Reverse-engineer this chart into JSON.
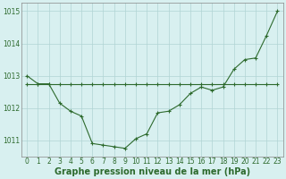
{
  "line1_x": [
    0,
    1,
    2,
    3,
    4,
    5,
    6,
    7,
    8,
    9,
    10,
    11,
    12,
    13,
    14,
    15,
    16,
    17,
    18,
    19,
    20,
    21,
    22,
    23
  ],
  "line1_y": [
    1012.75,
    1012.75,
    1012.75,
    1012.75,
    1012.75,
    1012.75,
    1012.75,
    1012.75,
    1012.75,
    1012.75,
    1012.75,
    1012.75,
    1012.75,
    1012.75,
    1012.75,
    1012.75,
    1012.75,
    1012.75,
    1012.75,
    1012.75,
    1012.75,
    1012.75,
    1012.75,
    1012.75
  ],
  "line2_x": [
    0,
    1,
    2,
    3,
    4,
    5,
    6,
    7,
    8,
    9,
    10,
    11,
    12,
    13,
    14,
    15,
    16,
    17,
    18,
    19,
    20,
    21,
    22,
    23
  ],
  "line2_y": [
    1013.0,
    1012.75,
    1012.75,
    1012.15,
    1011.9,
    1011.75,
    1010.9,
    1010.85,
    1010.8,
    1010.75,
    1011.05,
    1011.2,
    1011.85,
    1011.9,
    1012.1,
    1012.45,
    1012.65,
    1012.55,
    1012.65,
    1013.2,
    1013.5,
    1013.55,
    1014.25,
    1015.0
  ],
  "line_color": "#2d6a2d",
  "bg_color": "#d8f0f0",
  "grid_color": "#b0d4d4",
  "xlabel": "Graphe pression niveau de la mer (hPa)",
  "ylim": [
    1010.5,
    1015.25
  ],
  "xlim": [
    -0.5,
    23.5
  ],
  "yticks": [
    1011,
    1012,
    1013,
    1014,
    1015
  ],
  "xticks": [
    0,
    1,
    2,
    3,
    4,
    5,
    6,
    7,
    8,
    9,
    10,
    11,
    12,
    13,
    14,
    15,
    16,
    17,
    18,
    19,
    20,
    21,
    22,
    23
  ],
  "tick_fontsize": 5.5,
  "label_fontsize": 7.0,
  "marker_size": 3.0,
  "linewidth": 0.8
}
